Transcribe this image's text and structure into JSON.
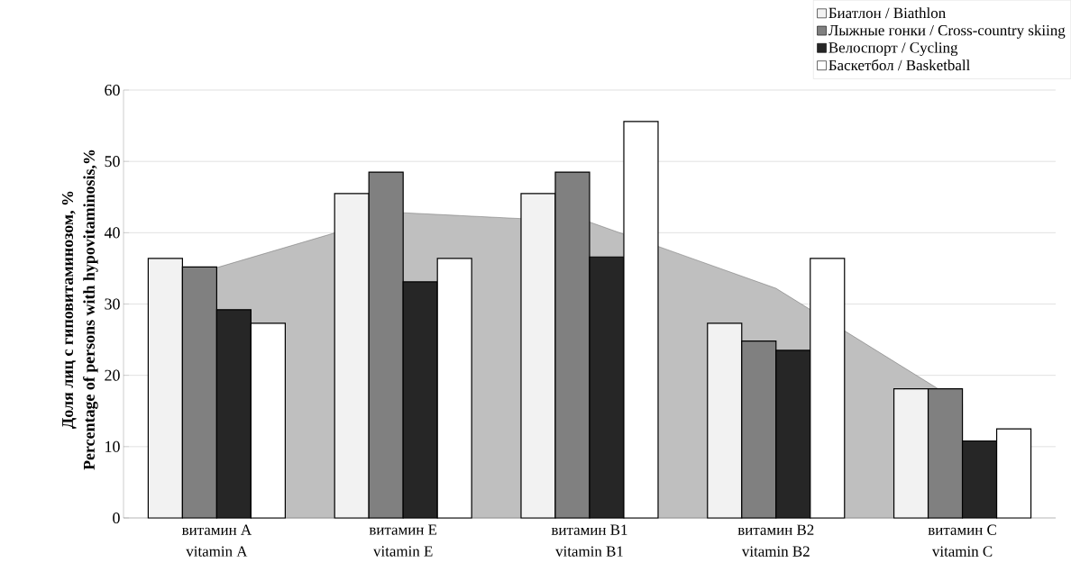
{
  "chart_data": {
    "type": "bar",
    "ylabel": "Доля лиц с гиповитаминозом, %\nPercentage of persons with hypovitaminosis,%",
    "categories": [
      "витамин A\nvitamin A",
      "витамин E\nvitamin E",
      "витамин B1\nvitamin B1",
      "витамин B2\nvitamin B2",
      "витамин C\nvitamin C"
    ],
    "series": [
      {
        "type": "area",
        "color": "#bfbfbf",
        "values": [
          35.1,
          42.8,
          41.5,
          32.2,
          16.0
        ]
      },
      {
        "name": "Биатлон / Biathlon",
        "color": "#f2f2f2",
        "values": [
          36.4,
          45.5,
          45.5,
          27.3,
          18.1
        ]
      },
      {
        "name": "Лыжные гонки / Cross-country skiing",
        "color": "#808080",
        "values": [
          35.2,
          48.5,
          48.5,
          24.8,
          18.1
        ]
      },
      {
        "name": "Велоспорт / Cycling",
        "color": "#262626",
        "values": [
          29.2,
          33.1,
          36.6,
          23.5,
          10.8
        ]
      },
      {
        "name": "Баскетбол / Basketball",
        "color": "#ffffff",
        "values": [
          27.3,
          36.4,
          55.6,
          36.4,
          12.5
        ]
      }
    ],
    "ylim": [
      0,
      60
    ],
    "yticks": [
      0,
      10,
      20,
      30,
      40,
      50,
      60
    ],
    "grid": "y",
    "legend": "top right"
  }
}
